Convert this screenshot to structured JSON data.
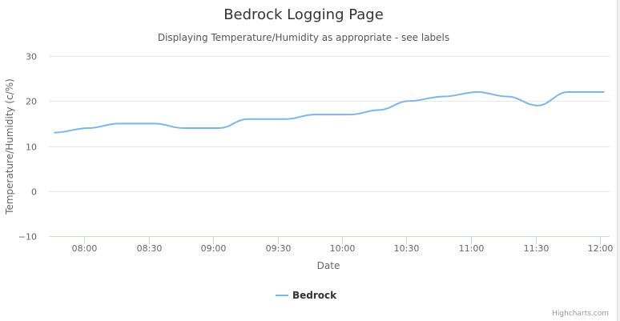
{
  "chart_data": {
    "type": "line",
    "title": "Bedrock Logging Page",
    "subtitle": "Displaying Temperature/Humidity as appropriate - see labels",
    "xlabel": "Date",
    "ylabel": "Temperature/Humidity (c/%)",
    "ylim": [
      -10,
      30
    ],
    "yticks": [
      "30",
      "20",
      "10",
      "0",
      "−10"
    ],
    "ytick_values": [
      30,
      20,
      10,
      0,
      -10
    ],
    "xticks": [
      "08:00",
      "08:30",
      "09:00",
      "09:30",
      "10:00",
      "10:30",
      "11:00",
      "11:30",
      "12:00"
    ],
    "grid": true,
    "legend_position": "bottom",
    "series": [
      {
        "name": "Bedrock",
        "color": "#7cb5ec",
        "x": [
          "07:46",
          "08:02",
          "08:16",
          "08:33",
          "08:46",
          "09:03",
          "09:16",
          "09:34",
          "09:47",
          "10:04",
          "10:17",
          "10:31",
          "10:47",
          "11:03",
          "11:17",
          "11:31",
          "11:45",
          "12:02"
        ],
        "y": [
          13,
          14,
          15,
          15,
          14,
          14,
          16,
          16,
          17,
          17,
          18,
          20,
          21,
          22,
          21,
          19,
          22,
          22
        ]
      }
    ]
  },
  "credits": "Highcharts.com"
}
